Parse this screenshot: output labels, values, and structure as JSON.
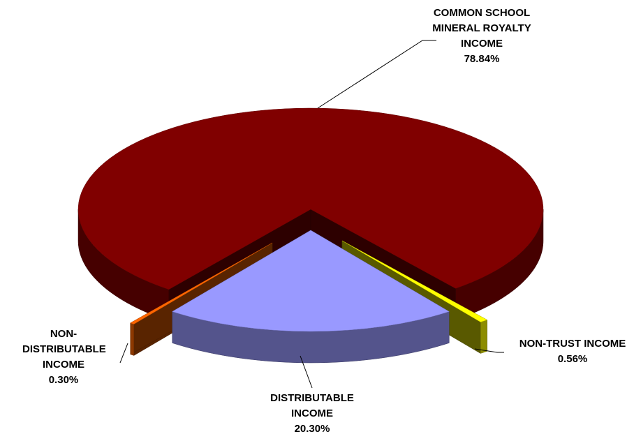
{
  "chart_data": {
    "type": "pie3d",
    "categories": [
      "COMMON SCHOOL MINERAL ROYALTY INCOME",
      "NON-TRUST INCOME",
      "DISTRIBUTABLE INCOME",
      "NON-DISTRIBUTABLE INCOME"
    ],
    "values": [
      78.84,
      0.56,
      20.3,
      0.3
    ],
    "value_labels": [
      "78.84%",
      "0.56%",
      "20.30%",
      "0.30%"
    ],
    "colors": [
      "#800000",
      "#ffff00",
      "#9999ff",
      "#ff6600"
    ]
  }
}
